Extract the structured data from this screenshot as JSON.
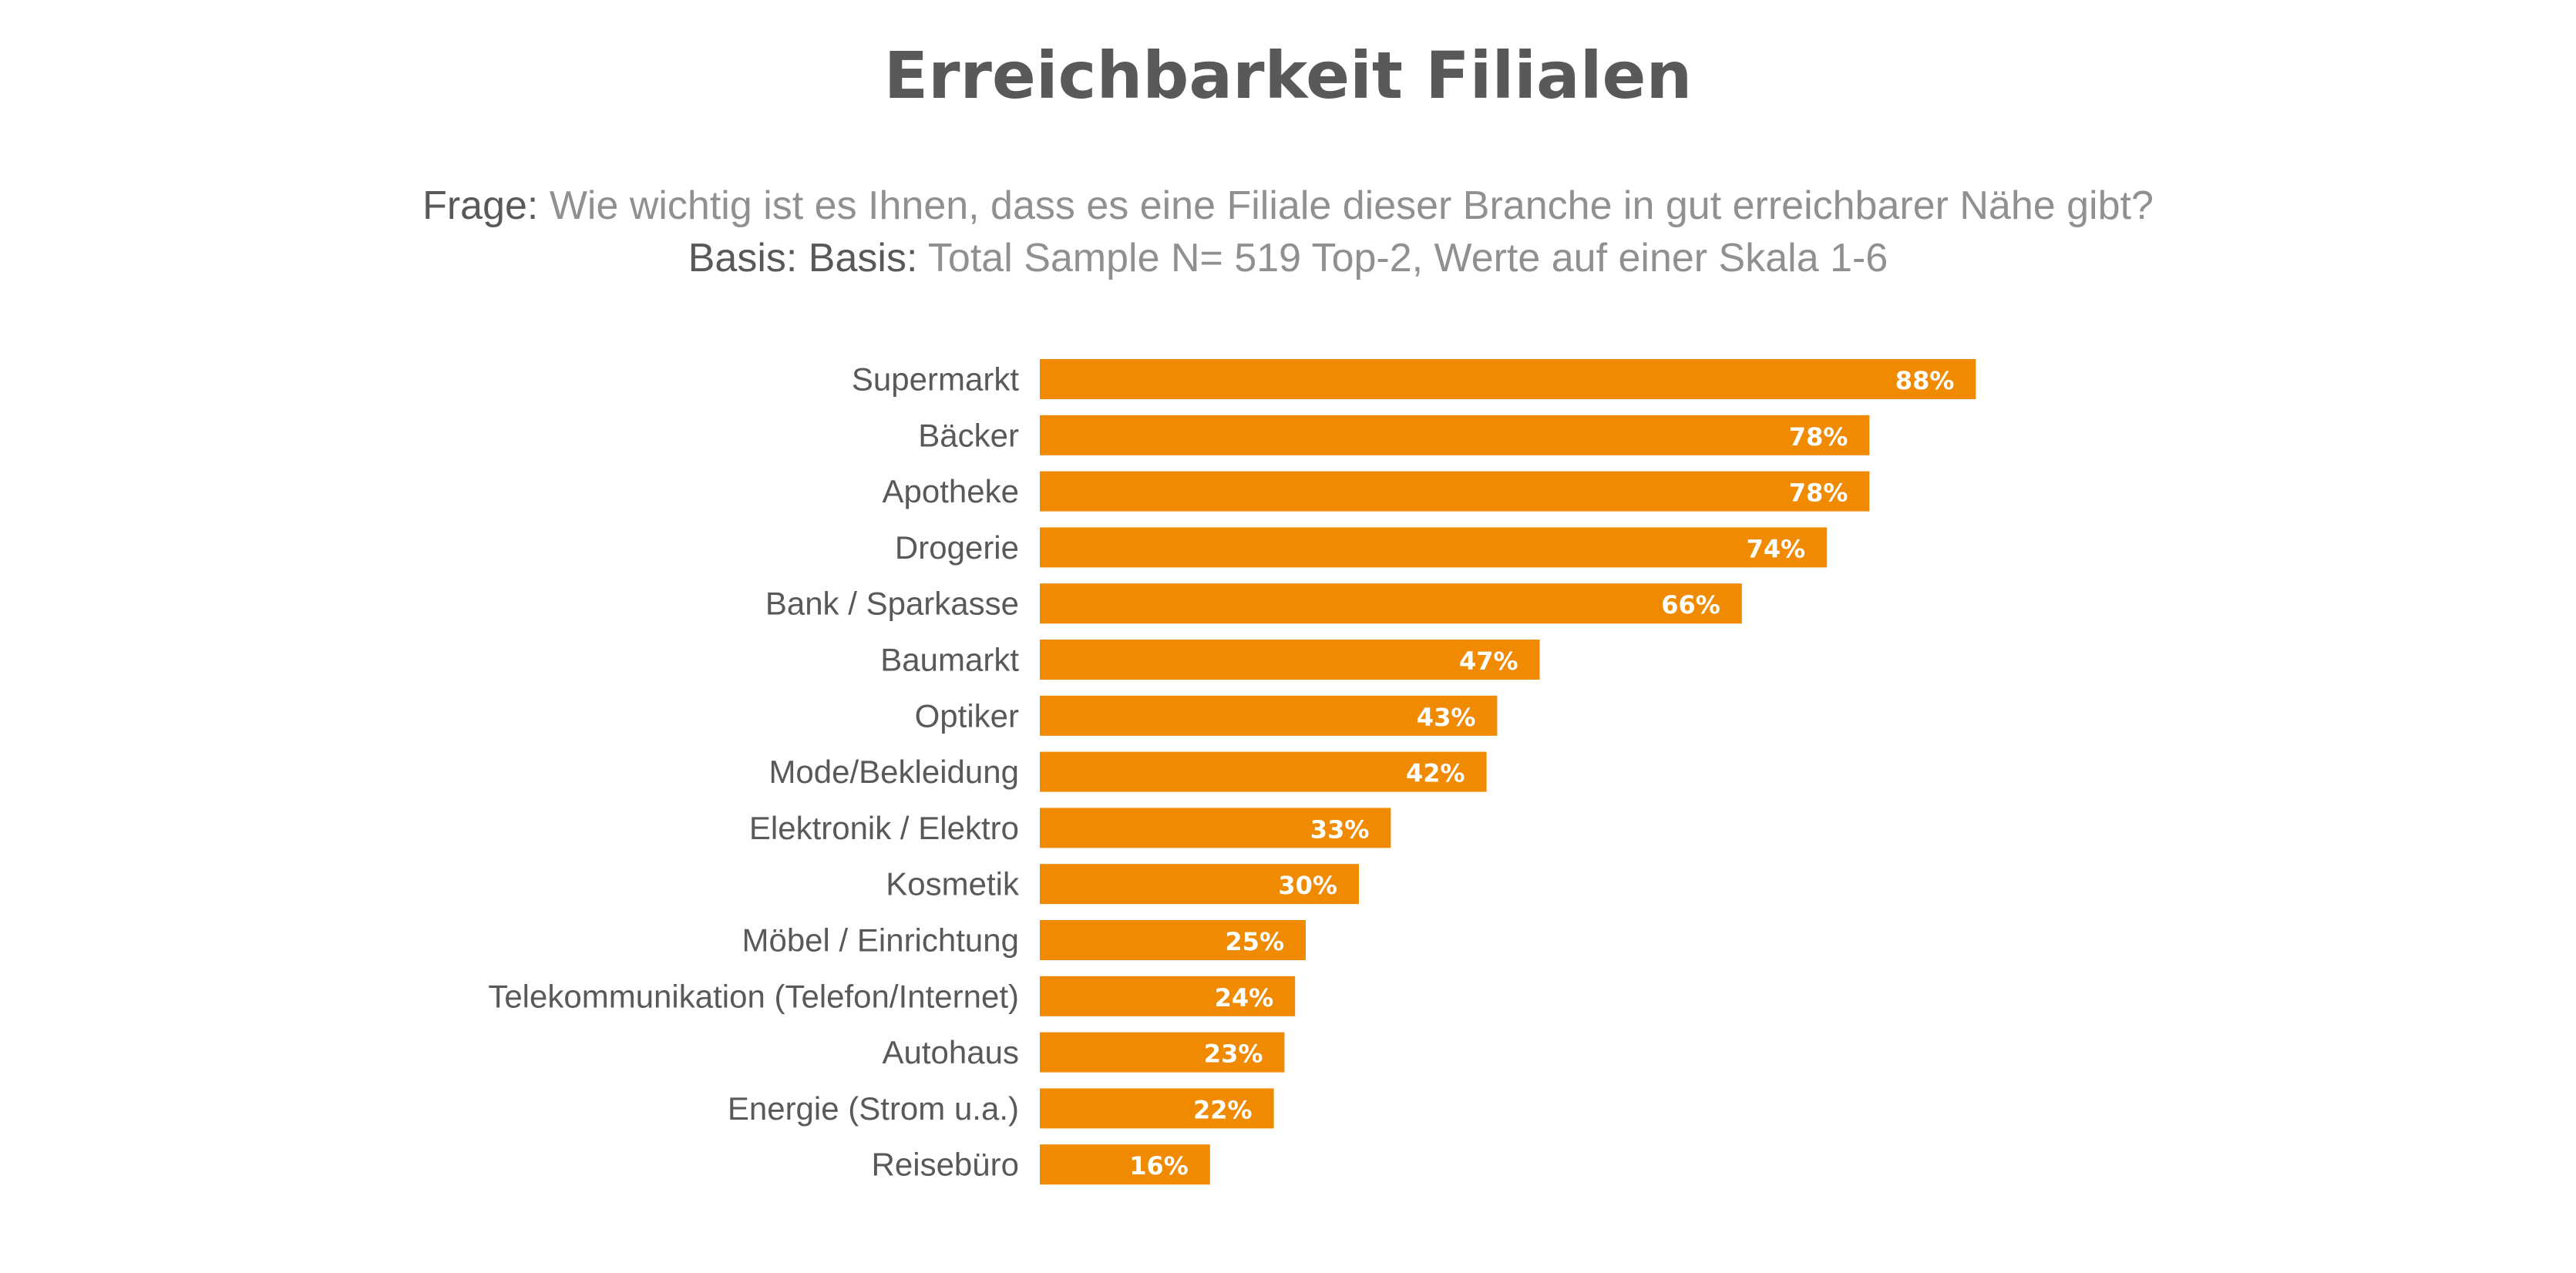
{
  "chart_data": {
    "type": "bar",
    "orientation": "horizontal",
    "title": "Erreichbarkeit Filialen",
    "subtitle": {
      "question_label": "Frage:",
      "question_text": "Wie wichtig ist es Ihnen, dass es eine Filiale dieser Branche in gut erreichbarer Nähe gibt?",
      "basis_label": "Basis: Basis:",
      "basis_text": "Total Sample N= 519 Top-2, Werte auf einer Skala 1-6"
    },
    "categories": [
      "Supermarkt",
      "Bäcker",
      "Apotheke",
      "Drogerie",
      "Bank / Sparkasse",
      "Baumarkt",
      "Optiker",
      "Mode/Bekleidung",
      "Elektronik / Elektro",
      "Kosmetik",
      "Möbel / Einrichtung",
      "Telekommunikation (Telefon/Internet)",
      "Autohaus",
      "Energie (Strom u.a.)",
      "Reisebüro"
    ],
    "values": [
      88,
      78,
      78,
      74,
      66,
      47,
      43,
      42,
      33,
      30,
      25,
      24,
      23,
      22,
      16
    ],
    "value_labels": [
      "88%",
      "78%",
      "78%",
      "74%",
      "66%",
      "47%",
      "43%",
      "42%",
      "33%",
      "30%",
      "25%",
      "24%",
      "23%",
      "22%",
      "16%"
    ],
    "unit": "%",
    "xlim": [
      0,
      100
    ],
    "grid": false,
    "legend": "none",
    "bar_color": "#F08A00",
    "label_color": "#FFFFFF"
  }
}
